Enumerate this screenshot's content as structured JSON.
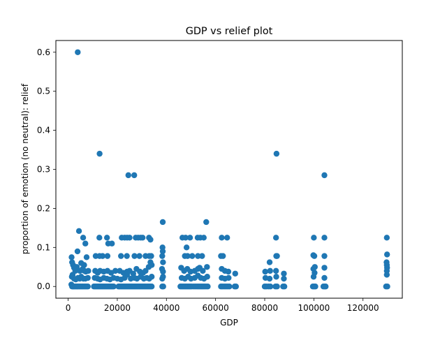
{
  "chart_data": {
    "type": "scatter",
    "title": "GDP vs relief plot",
    "xlabel": "GDP",
    "ylabel": "proportion of emotion (no neutral): relief",
    "xlim": [
      -5000,
      136000
    ],
    "ylim": [
      -0.03,
      0.63
    ],
    "xticks": [
      0,
      20000,
      40000,
      60000,
      80000,
      100000,
      120000
    ],
    "xtick_labels": [
      "0",
      "20000",
      "40000",
      "60000",
      "80000",
      "100000",
      "120000"
    ],
    "yticks": [
      0.0,
      0.1,
      0.2,
      0.3,
      0.4,
      0.5,
      0.6
    ],
    "ytick_labels": [
      "0.0",
      "0.1",
      "0.2",
      "0.3",
      "0.4",
      "0.5",
      "0.6"
    ],
    "grid": false,
    "marker_color": "#1f77b4",
    "series": [
      {
        "points": [
          [
            3900,
            0.6
          ],
          [
            12800,
            0.34
          ],
          [
            24500,
            0.285
          ],
          [
            26900,
            0.285
          ],
          [
            84800,
            0.34
          ],
          [
            104300,
            0.285
          ],
          [
            38500,
            0.165
          ],
          [
            56200,
            0.165
          ],
          [
            4400,
            0.142
          ],
          [
            6100,
            0.125
          ],
          [
            7000,
            0.11
          ],
          [
            12700,
            0.125
          ],
          [
            15800,
            0.125
          ],
          [
            16300,
            0.11
          ],
          [
            17800,
            0.11
          ],
          [
            21800,
            0.125
          ],
          [
            23000,
            0.125
          ],
          [
            24000,
            0.125
          ],
          [
            25000,
            0.125
          ],
          [
            27500,
            0.125
          ],
          [
            28500,
            0.125
          ],
          [
            29500,
            0.125
          ],
          [
            30300,
            0.125
          ],
          [
            32900,
            0.125
          ],
          [
            33500,
            0.12
          ],
          [
            38400,
            0.1
          ],
          [
            38500,
            0.09
          ],
          [
            46500,
            0.125
          ],
          [
            47800,
            0.125
          ],
          [
            49600,
            0.125
          ],
          [
            52700,
            0.125
          ],
          [
            53800,
            0.125
          ],
          [
            55200,
            0.125
          ],
          [
            62500,
            0.125
          ],
          [
            64700,
            0.125
          ],
          [
            84600,
            0.125
          ],
          [
            100000,
            0.125
          ],
          [
            104300,
            0.125
          ],
          [
            129700,
            0.125
          ],
          [
            48200,
            0.1
          ],
          [
            3800,
            0.09
          ],
          [
            1400,
            0.075
          ],
          [
            6500,
            0.055
          ],
          [
            7500,
            0.075
          ],
          [
            11200,
            0.078
          ],
          [
            12800,
            0.078
          ],
          [
            14000,
            0.078
          ],
          [
            16000,
            0.078
          ],
          [
            21500,
            0.078
          ],
          [
            23900,
            0.078
          ],
          [
            27000,
            0.078
          ],
          [
            29000,
            0.078
          ],
          [
            31500,
            0.078
          ],
          [
            33000,
            0.078
          ],
          [
            33800,
            0.078
          ],
          [
            38300,
            0.078
          ],
          [
            38600,
            0.062
          ],
          [
            47500,
            0.078
          ],
          [
            48600,
            0.078
          ],
          [
            50500,
            0.078
          ],
          [
            52800,
            0.078
          ],
          [
            54500,
            0.078
          ],
          [
            62200,
            0.078
          ],
          [
            63000,
            0.078
          ],
          [
            82000,
            0.062
          ],
          [
            84700,
            0.078
          ],
          [
            85000,
            0.078
          ],
          [
            99800,
            0.08
          ],
          [
            100200,
            0.078
          ],
          [
            104300,
            0.078
          ],
          [
            129800,
            0.082
          ],
          [
            1600,
            0.062
          ],
          [
            2000,
            0.055
          ],
          [
            2400,
            0.048
          ],
          [
            2900,
            0.04
          ],
          [
            3500,
            0.05
          ],
          [
            4800,
            0.04
          ],
          [
            5300,
            0.06
          ],
          [
            5900,
            0.045
          ],
          [
            6600,
            0.04
          ],
          [
            7200,
            0.038
          ],
          [
            8200,
            0.04
          ],
          [
            11000,
            0.04
          ],
          [
            12000,
            0.035
          ],
          [
            13000,
            0.04
          ],
          [
            14500,
            0.038
          ],
          [
            16000,
            0.04
          ],
          [
            17500,
            0.035
          ],
          [
            19200,
            0.04
          ],
          [
            21000,
            0.04
          ],
          [
            22500,
            0.035
          ],
          [
            24000,
            0.038
          ],
          [
            25000,
            0.04
          ],
          [
            26500,
            0.033
          ],
          [
            27800,
            0.045
          ],
          [
            29200,
            0.038
          ],
          [
            30500,
            0.035
          ],
          [
            31500,
            0.04
          ],
          [
            32800,
            0.05
          ],
          [
            33500,
            0.062
          ],
          [
            34000,
            0.055
          ],
          [
            38200,
            0.045
          ],
          [
            38600,
            0.038
          ],
          [
            46000,
            0.048
          ],
          [
            47200,
            0.04
          ],
          [
            48500,
            0.045
          ],
          [
            49800,
            0.038
          ],
          [
            51500,
            0.04
          ],
          [
            52800,
            0.045
          ],
          [
            53500,
            0.048
          ],
          [
            54800,
            0.04
          ],
          [
            56500,
            0.05
          ],
          [
            62500,
            0.045
          ],
          [
            63800,
            0.04
          ],
          [
            65200,
            0.038
          ],
          [
            68000,
            0.033
          ],
          [
            80200,
            0.038
          ],
          [
            82200,
            0.04
          ],
          [
            84600,
            0.04
          ],
          [
            87800,
            0.033
          ],
          [
            99800,
            0.045
          ],
          [
            100400,
            0.05
          ],
          [
            104300,
            0.048
          ],
          [
            129600,
            0.062
          ],
          [
            129700,
            0.055
          ],
          [
            129800,
            0.048
          ],
          [
            1500,
            0.025
          ],
          [
            1800,
            0.03
          ],
          [
            2400,
            0.02
          ],
          [
            3100,
            0.018
          ],
          [
            4000,
            0.022
          ],
          [
            4700,
            0.02
          ],
          [
            5300,
            0.025
          ],
          [
            6200,
            0.02
          ],
          [
            7000,
            0.02
          ],
          [
            8000,
            0.022
          ],
          [
            10800,
            0.022
          ],
          [
            12000,
            0.02
          ],
          [
            13000,
            0.018
          ],
          [
            14500,
            0.022
          ],
          [
            15800,
            0.02
          ],
          [
            17000,
            0.018
          ],
          [
            18500,
            0.022
          ],
          [
            20000,
            0.02
          ],
          [
            21500,
            0.018
          ],
          [
            23000,
            0.022
          ],
          [
            24000,
            0.03
          ],
          [
            25500,
            0.02
          ],
          [
            27000,
            0.022
          ],
          [
            28000,
            0.02
          ],
          [
            29500,
            0.025
          ],
          [
            30800,
            0.02
          ],
          [
            32000,
            0.022
          ],
          [
            33000,
            0.02
          ],
          [
            34000,
            0.025
          ],
          [
            38300,
            0.02
          ],
          [
            38600,
            0.025
          ],
          [
            46200,
            0.022
          ],
          [
            47500,
            0.02
          ],
          [
            48800,
            0.025
          ],
          [
            50000,
            0.02
          ],
          [
            51500,
            0.022
          ],
          [
            52800,
            0.028
          ],
          [
            54000,
            0.022
          ],
          [
            55300,
            0.02
          ],
          [
            56600,
            0.025
          ],
          [
            62500,
            0.022
          ],
          [
            63800,
            0.02
          ],
          [
            65300,
            0.022
          ],
          [
            80300,
            0.022
          ],
          [
            82000,
            0.02
          ],
          [
            84700,
            0.025
          ],
          [
            87800,
            0.02
          ],
          [
            99900,
            0.025
          ],
          [
            100300,
            0.035
          ],
          [
            104300,
            0.022
          ],
          [
            129700,
            0.04
          ],
          [
            129700,
            0.03
          ],
          [
            1300,
            0.005
          ],
          [
            1600,
            0.0
          ],
          [
            2000,
            0.0
          ],
          [
            2300,
            0.0
          ],
          [
            2700,
            0.0
          ],
          [
            3200,
            0.0
          ],
          [
            3600,
            0.0
          ],
          [
            4000,
            0.0
          ],
          [
            4500,
            0.0
          ],
          [
            5000,
            0.0
          ],
          [
            5500,
            0.0
          ],
          [
            6000,
            0.0
          ],
          [
            6500,
            0.0
          ],
          [
            7000,
            0.0
          ],
          [
            7500,
            0.0
          ],
          [
            8000,
            0.0
          ],
          [
            10500,
            0.0
          ],
          [
            11000,
            0.0
          ],
          [
            11500,
            0.0
          ],
          [
            12000,
            0.0
          ],
          [
            12500,
            0.0
          ],
          [
            13000,
            0.0
          ],
          [
            13500,
            0.0
          ],
          [
            14000,
            0.0
          ],
          [
            14500,
            0.0
          ],
          [
            15000,
            0.0
          ],
          [
            15500,
            0.0
          ],
          [
            16000,
            0.0
          ],
          [
            16500,
            0.0
          ],
          [
            17000,
            0.0
          ],
          [
            17500,
            0.0
          ],
          [
            18000,
            0.0
          ],
          [
            18500,
            0.0
          ],
          [
            20500,
            0.0
          ],
          [
            21000,
            0.0
          ],
          [
            21500,
            0.0
          ],
          [
            22000,
            0.0
          ],
          [
            22500,
            0.0
          ],
          [
            23000,
            0.0
          ],
          [
            23500,
            0.0
          ],
          [
            24000,
            0.0
          ],
          [
            24500,
            0.0
          ],
          [
            25000,
            0.0
          ],
          [
            25500,
            0.0
          ],
          [
            26000,
            0.0
          ],
          [
            26500,
            0.0
          ],
          [
            27000,
            0.0
          ],
          [
            27500,
            0.0
          ],
          [
            28000,
            0.0
          ],
          [
            28500,
            0.0
          ],
          [
            29000,
            0.0
          ],
          [
            29500,
            0.0
          ],
          [
            30000,
            0.0
          ],
          [
            30500,
            0.0
          ],
          [
            31000,
            0.0
          ],
          [
            31500,
            0.0
          ],
          [
            32000,
            0.0
          ],
          [
            32500,
            0.0
          ],
          [
            33000,
            0.0
          ],
          [
            33500,
            0.0
          ],
          [
            34000,
            0.0
          ],
          [
            38300,
            0.0
          ],
          [
            38700,
            0.0
          ],
          [
            45700,
            0.0
          ],
          [
            46200,
            0.0
          ],
          [
            46700,
            0.0
          ],
          [
            47200,
            0.0
          ],
          [
            47700,
            0.0
          ],
          [
            48200,
            0.0
          ],
          [
            48700,
            0.0
          ],
          [
            49200,
            0.0
          ],
          [
            49700,
            0.0
          ],
          [
            50200,
            0.0
          ],
          [
            51000,
            0.0
          ],
          [
            51700,
            0.0
          ],
          [
            52400,
            0.0
          ],
          [
            53000,
            0.0
          ],
          [
            53600,
            0.0
          ],
          [
            54200,
            0.0
          ],
          [
            54800,
            0.0
          ],
          [
            55400,
            0.0
          ],
          [
            56100,
            0.0
          ],
          [
            56800,
            0.0
          ],
          [
            62200,
            0.0
          ],
          [
            62800,
            0.0
          ],
          [
            63500,
            0.0
          ],
          [
            64200,
            0.0
          ],
          [
            64900,
            0.0
          ],
          [
            65600,
            0.0
          ],
          [
            67800,
            0.0
          ],
          [
            68300,
            0.0
          ],
          [
            80000,
            0.0
          ],
          [
            80600,
            0.0
          ],
          [
            81500,
            0.0
          ],
          [
            82300,
            0.0
          ],
          [
            84400,
            0.0
          ],
          [
            85000,
            0.0
          ],
          [
            87500,
            0.0
          ],
          [
            88000,
            0.0
          ],
          [
            99600,
            0.0
          ],
          [
            100100,
            0.0
          ],
          [
            100600,
            0.0
          ],
          [
            103900,
            0.0
          ],
          [
            104400,
            0.0
          ],
          [
            104800,
            0.0
          ],
          [
            129400,
            0.0
          ],
          [
            129900,
            0.0
          ]
        ]
      }
    ]
  }
}
